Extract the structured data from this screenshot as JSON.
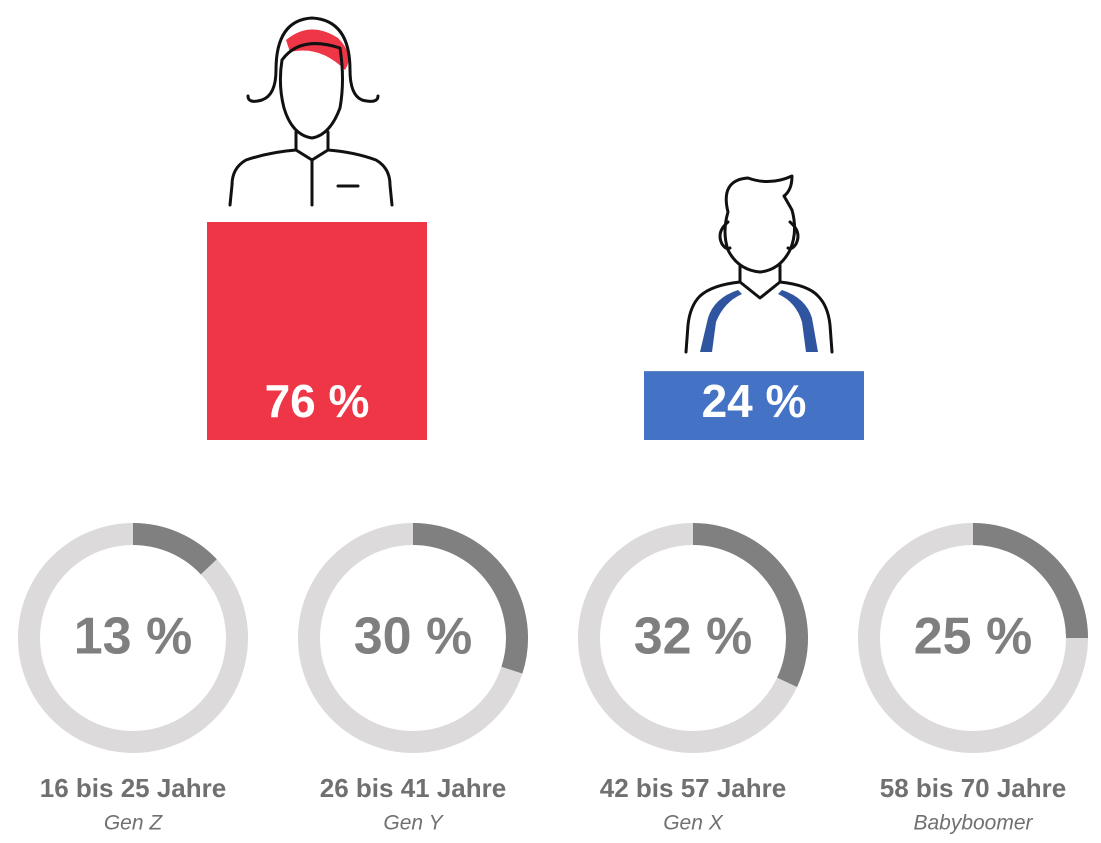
{
  "chart_data": [
    {
      "type": "bar",
      "values": [
        76,
        24
      ],
      "value_labels": [
        "76 %",
        "24 %"
      ],
      "colors": [
        "#ee3646",
        "#4472c4"
      ]
    },
    {
      "type": "donut",
      "categories": [
        "16 bis 25 Jahre",
        "26 bis 41 Jahre",
        "42 bis 57 Jahre",
        "58 bis 70 Jahre"
      ],
      "subtitles": [
        "Gen Z",
        "Gen Y",
        "Gen X",
        "Babyboomer"
      ],
      "values": [
        13,
        30,
        32,
        25
      ],
      "value_labels": [
        "13 %",
        "30 %",
        "32 %",
        "25 %"
      ],
      "ylim": [
        0,
        100
      ],
      "color": "#808080",
      "track_color": "#dcdadb"
    }
  ]
}
